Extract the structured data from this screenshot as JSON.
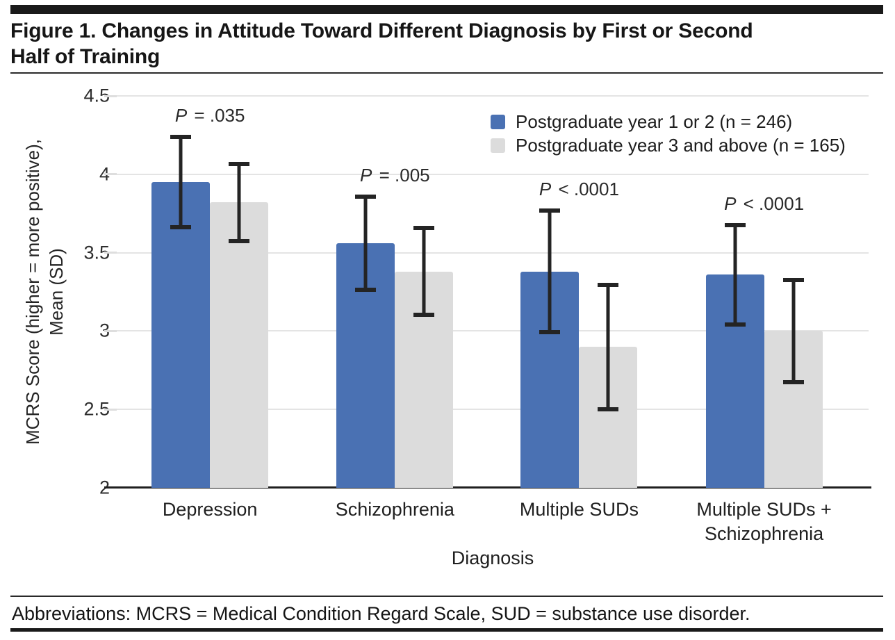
{
  "header": {
    "title_lines": [
      "Figure 1. Changes in Attitude Toward Different Diagnosis by First or Second",
      "Half of Training"
    ]
  },
  "chart_data": {
    "type": "bar",
    "title": "Changes in Attitude Toward Different Diagnosis by First or Second Half of Training",
    "categories": [
      "Depression",
      "Schizophrenia",
      "Multiple SUDs",
      "Multiple SUDs + Schizophrenia"
    ],
    "category_label_lines": [
      [
        "Depression"
      ],
      [
        "Schizophrenia"
      ],
      [
        "Multiple SUDs"
      ],
      [
        "Multiple SUDs +",
        "Schizophrenia"
      ]
    ],
    "series": [
      {
        "name": "Postgraduate year 1 or 2 (n = 246)",
        "color": "#4a71b3",
        "values": [
          3.95,
          3.56,
          3.38,
          3.36
        ],
        "sd": [
          0.3,
          0.31,
          0.4,
          0.33
        ]
      },
      {
        "name": "Postgraduate year 3 and above (n = 165)",
        "color": "#dcdcdc",
        "values": [
          3.82,
          3.38,
          2.9,
          3.0
        ],
        "sd": [
          0.26,
          0.29,
          0.41,
          0.34
        ]
      }
    ],
    "p_labels": [
      "P = .035",
      "P = .005",
      "P < .0001",
      "P < .0001"
    ],
    "error_bars": "mean ± SD",
    "xlabel": "Diagnosis",
    "ylabel_lines": [
      "MCRS Score (higher = more positive),",
      "Mean (SD)"
    ],
    "ylim": [
      2,
      4.5
    ],
    "yticks": [
      4.5,
      4,
      3.5,
      3,
      2.5,
      2
    ],
    "grid": true,
    "legend_position": "top-right"
  },
  "footer": {
    "text": "Abbreviations: MCRS = Medical Condition Regard Scale, SUD = substance use disorder."
  }
}
